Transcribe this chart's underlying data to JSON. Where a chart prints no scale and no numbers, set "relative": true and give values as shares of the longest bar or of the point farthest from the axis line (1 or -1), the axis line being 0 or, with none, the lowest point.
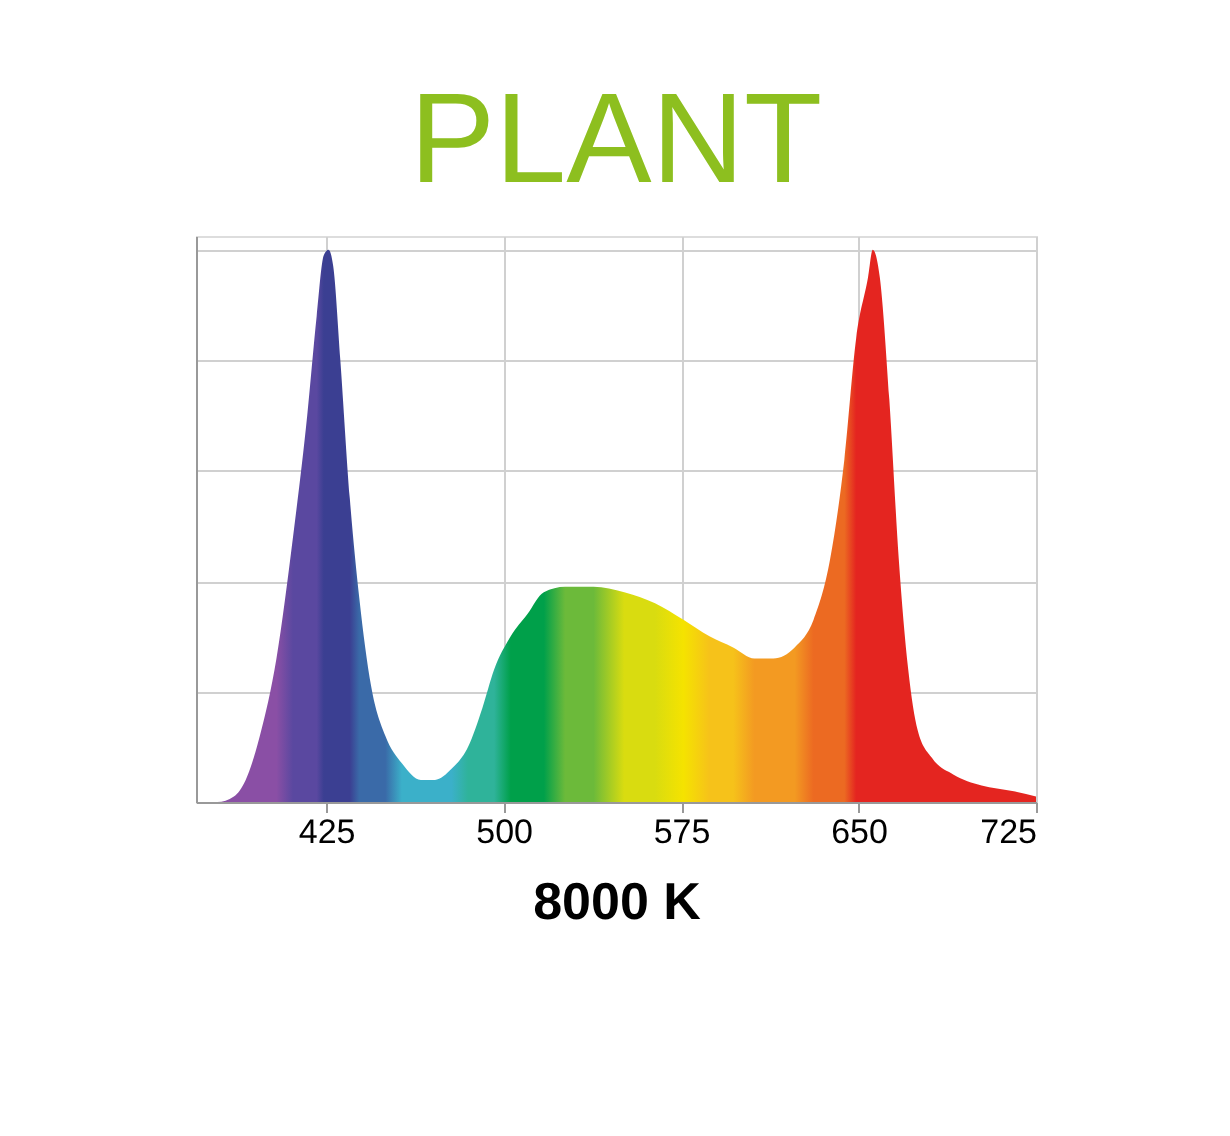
{
  "chart_data": {
    "type": "area",
    "title": "PLANT",
    "xlabel": "8000 K",
    "relative": true,
    "xlim": [
      370,
      725
    ],
    "xticks": [
      425,
      500,
      575,
      650,
      725
    ],
    "grid": true,
    "tick_labels": "x",
    "colors": [
      "#8a4fa5",
      "#8a4fa5",
      "#8a4fa5",
      "#8a4fa5",
      "#8a4fa5",
      "#8a4fa5",
      "#5a48a0",
      "#5a48a0",
      "#5a48a0",
      "#3b3f92",
      "#3b3f92",
      "#3b3f92",
      "#3b3f92",
      "#3b3f92",
      "#3a6aa8",
      "#3a6aa8",
      "#3a6aa8",
      "#3bb0c9",
      "#3bb0c9",
      "#3bb0c9",
      "#3bb0c9",
      "#2fb39a",
      "#2fb39a",
      "#2fb39a",
      "#00a04a",
      "#00a04a",
      "#00a04a",
      "#6cba3a",
      "#6cba3a",
      "#d9dc10",
      "#d9dc10",
      "#f5e300",
      "#f6c21a",
      "#f6c21a",
      "#f39a22",
      "#f39a22",
      "#f39a22",
      "#ec6a22",
      "#ec6a22",
      "#ec6a22",
      "#e42520",
      "#e42520",
      "#e42520",
      "#e42520",
      "#e42520",
      "#e42520",
      "#e42520",
      "#e42520",
      "#e42520",
      "#e42520",
      "#e42520",
      "#e42520",
      "#e42520"
    ],
    "x": [
      370,
      379,
      386,
      391,
      397,
      404,
      411,
      417,
      421,
      424,
      426,
      428,
      431,
      435,
      439,
      444,
      450,
      457,
      465,
      471,
      478,
      485,
      491,
      496,
      503,
      510,
      517,
      526,
      538,
      551,
      564,
      576,
      587,
      597,
      606,
      614,
      623,
      631,
      638,
      644,
      649,
      654,
      656,
      659,
      663,
      667,
      671,
      675,
      681,
      690,
      702,
      715,
      725
    ],
    "values": [
      0,
      0,
      0.01,
      0.04,
      0.12,
      0.26,
      0.48,
      0.7,
      0.88,
      0.99,
      1,
      0.97,
      0.8,
      0.55,
      0.37,
      0.21,
      0.12,
      0.07,
      0.04,
      0.04,
      0.06,
      0.1,
      0.17,
      0.24,
      0.3,
      0.34,
      0.38,
      0.39,
      0.39,
      0.38,
      0.36,
      0.33,
      0.3,
      0.28,
      0.26,
      0.26,
      0.28,
      0.33,
      0.44,
      0.62,
      0.84,
      0.95,
      1,
      0.95,
      0.73,
      0.44,
      0.24,
      0.13,
      0.08,
      0.05,
      0.03,
      0.02,
      0.01
    ]
  }
}
